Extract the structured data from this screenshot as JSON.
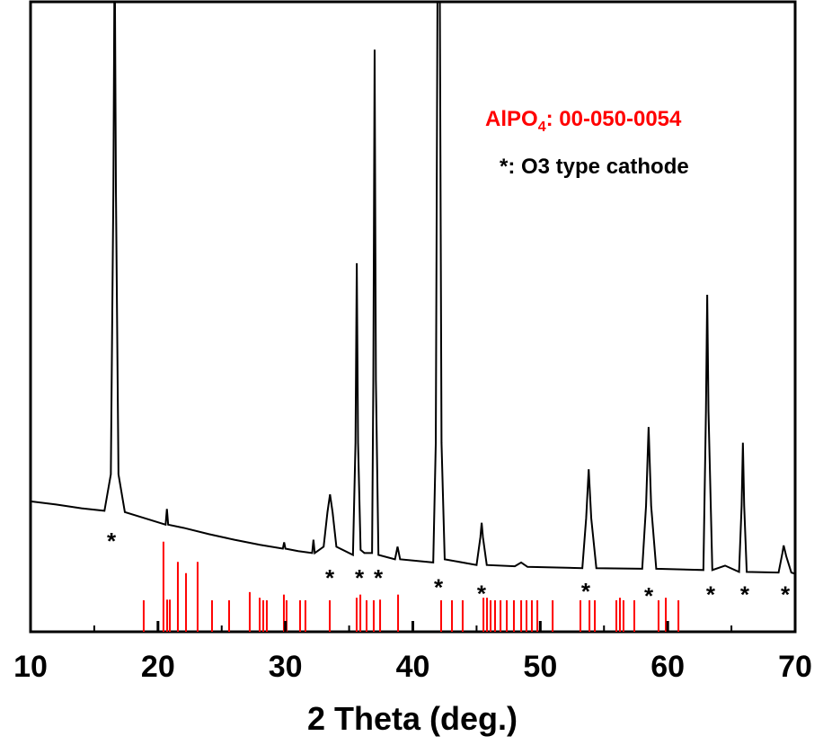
{
  "chart_data": {
    "type": "xrd",
    "x_label": "2 Theta (deg.)",
    "xlim": [
      10,
      70
    ],
    "ylim": [
      0,
      100
    ],
    "xticks": [
      10,
      20,
      30,
      40,
      50,
      60,
      70
    ],
    "xminor": [
      15,
      25,
      35,
      45,
      55,
      65
    ],
    "series": [
      {
        "style": "line",
        "color": "#000000",
        "x": [
          10,
          12,
          14,
          15.8,
          16.3,
          16.5,
          16.6,
          16.7,
          16.9,
          17.4,
          19,
          20.6,
          20.7,
          20.8,
          22,
          24,
          26,
          28,
          29.8,
          29.9,
          30.0,
          31,
          32.1,
          32.2,
          32.3,
          33,
          33.3,
          33.5,
          33.7,
          34,
          35.3,
          35.5,
          35.6,
          35.7,
          35.9,
          36.2,
          36.8,
          36.9,
          37.0,
          37.1,
          37.3,
          38.6,
          38.8,
          39.0,
          41.6,
          41.8,
          41.95,
          42.1,
          42.25,
          42.5,
          45.0,
          45.3,
          45.4,
          45.5,
          45.8,
          48,
          48.5,
          49,
          53.3,
          53.6,
          53.8,
          54.0,
          54.4,
          58.0,
          58.3,
          58.5,
          58.7,
          59.1,
          62.8,
          63.0,
          63.1,
          63.2,
          63.5,
          64.5,
          65.6,
          65.8,
          65.9,
          66.0,
          66.2,
          68.7,
          69.0,
          69.1,
          69.3,
          69.7,
          70
        ],
        "values": [
          20.7,
          20.2,
          19.6,
          19.2,
          25,
          70,
          110,
          70,
          25,
          19,
          18,
          17,
          19.5,
          17,
          16.5,
          15.5,
          14.6,
          13.8,
          13.2,
          14.2,
          13.2,
          12.8,
          12.5,
          14.6,
          12.5,
          13.5,
          19,
          21.8,
          19,
          13.5,
          12.2,
          30,
          58.5,
          30,
          13,
          12.5,
          12.5,
          40,
          92.4,
          40,
          12.2,
          11.5,
          13.5,
          11.5,
          11,
          30,
          110,
          110,
          30,
          11.5,
          10.6,
          15,
          17.3,
          15,
          10.6,
          10.4,
          11,
          10.3,
          10.1,
          18,
          25.8,
          18,
          10.1,
          10,
          20,
          32.5,
          20,
          10,
          9.8,
          35,
          53.5,
          35,
          9.8,
          10.5,
          9.5,
          20,
          30,
          20,
          9.5,
          9.4,
          12.5,
          13.7,
          12,
          9.4,
          9.2
        ]
      },
      {
        "style": "stick",
        "color": "#ff0000",
        "x": [
          18.88,
          20.43,
          20.72,
          20.93,
          21.56,
          22.2,
          23.11,
          24.24,
          25.58,
          27.2,
          27.98,
          28.26,
          28.54,
          29.88,
          30.09,
          31.15,
          31.57,
          33.48,
          35.59,
          35.88,
          36.37,
          36.93,
          37.43,
          38.84,
          42.22,
          43.07,
          43.91,
          45.54,
          45.82,
          46.1,
          46.45,
          46.88,
          47.37,
          47.93,
          48.5,
          48.92,
          49.34,
          49.77,
          50.97,
          53.15,
          53.86,
          54.28,
          55.97,
          56.25,
          56.53,
          57.38,
          59.28,
          59.85,
          60.84
        ],
        "values": [
          5,
          14.3,
          5.1,
          5.1,
          11.1,
          9.3,
          11.1,
          5,
          5,
          6.3,
          5.4,
          5,
          5,
          5.9,
          5,
          5,
          5,
          5,
          5.4,
          5.9,
          5,
          5,
          5.1,
          5.9,
          5,
          5,
          5,
          5.4,
          5.4,
          5,
          5,
          5,
          5,
          5,
          5,
          5,
          5,
          5,
          5,
          5,
          5,
          5,
          5,
          5.4,
          5,
          5,
          5,
          5.4,
          5
        ]
      }
    ],
    "markers": {
      "label": "*",
      "color": "#000000",
      "x": [
        16.35,
        33.48,
        35.81,
        37.29,
        42.01,
        45.39,
        53.57,
        58.51,
        63.37,
        66.05,
        69.23
      ],
      "y": [
        15.1,
        9.3,
        9.3,
        9.3,
        7.8,
        6.8,
        7.1,
        6.4,
        6.6,
        6.6,
        6.6
      ]
    },
    "annotations": [
      {
        "color": "#ff0000",
        "parts": [
          "AlPO",
          "4",
          ": 00-050-0054"
        ]
      },
      {
        "color": "#000000",
        "parts": [
          "*: O3 type cathode"
        ]
      }
    ]
  }
}
